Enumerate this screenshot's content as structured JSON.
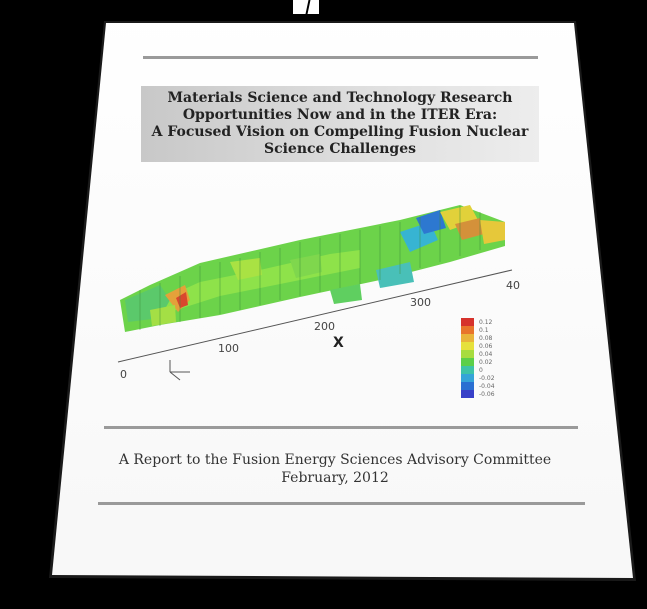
{
  "title_lines": [
    "Materials Science and Technology Research",
    "Opportunities Now and in the ITER Era:",
    "A Focused Vision on Compelling Fusion Nuclear",
    "Science Challenges"
  ],
  "report_line": "A Report to the Fusion Energy Sciences Advisory Committee",
  "date_line": "February, 2012",
  "figure": {
    "axis_ticks": [
      "0",
      "100",
      "200",
      "300",
      "40"
    ],
    "legend_values": [
      "0.12",
      "0.1",
      "0.08",
      "0.06",
      "0.04",
      "0.02",
      "0",
      "-0.02",
      "-0.04",
      "-0.06"
    ],
    "marker": "X"
  }
}
